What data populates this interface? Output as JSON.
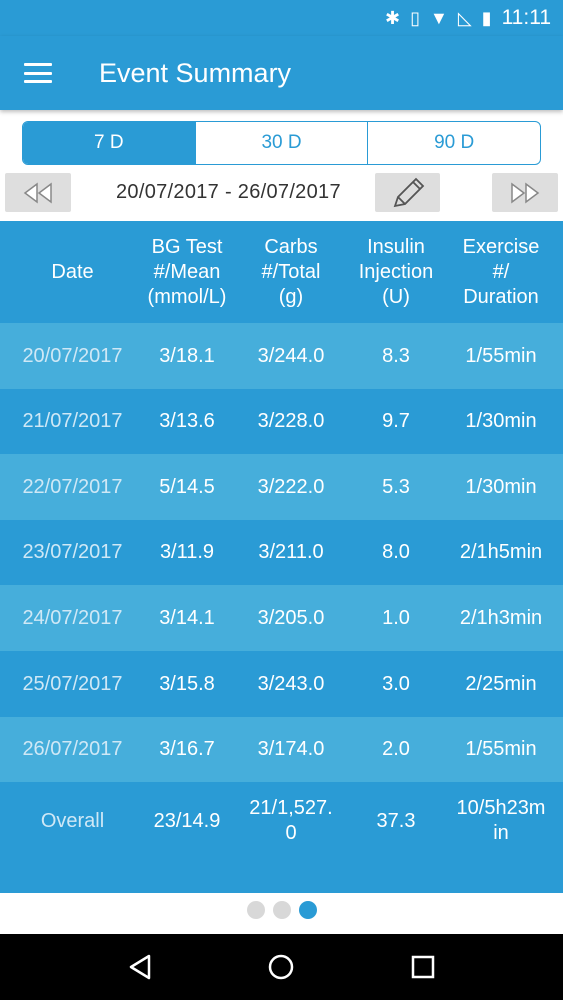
{
  "status": {
    "time": "11:11"
  },
  "appbar": {
    "title": "Event Summary"
  },
  "range_tabs": [
    {
      "label": "7 D",
      "active": true
    },
    {
      "label": "30 D",
      "active": false
    },
    {
      "label": "90 D",
      "active": false
    }
  ],
  "date_range": "20/07/2017 - 26/07/2017",
  "table": {
    "headers": [
      "Date",
      "BG Test\n#/Mean\n(mmol/L)",
      "Carbs\n#/Total\n(g)",
      "Insulin\nInjection\n(U)",
      "Exercise\n#/\nDuration"
    ],
    "rows": [
      [
        "20/07/2017",
        "3/18.1",
        "3/244.0",
        "8.3",
        "1/55min"
      ],
      [
        "21/07/2017",
        "3/13.6",
        "3/228.0",
        "9.7",
        "1/30min"
      ],
      [
        "22/07/2017",
        "5/14.5",
        "3/222.0",
        "5.3",
        "1/30min"
      ],
      [
        "23/07/2017",
        "3/11.9",
        "3/211.0",
        "8.0",
        "2/1h5min"
      ],
      [
        "24/07/2017",
        "3/14.1",
        "3/205.0",
        "1.0",
        "2/1h3min"
      ],
      [
        "25/07/2017",
        "3/15.8",
        "3/243.0",
        "3.0",
        "2/25min"
      ],
      [
        "26/07/2017",
        "3/16.7",
        "3/174.0",
        "2.0",
        "1/55min"
      ]
    ],
    "overall": [
      "Overall",
      "23/14.9",
      "21/1,527.\n0",
      "37.3",
      "10/5h23m\nin"
    ]
  },
  "colors": {
    "primary": "#2a9bd5",
    "row_light": "#46aedb",
    "row_dark": "#2a9bd5"
  },
  "pager": {
    "pages": 3,
    "current": 3
  }
}
